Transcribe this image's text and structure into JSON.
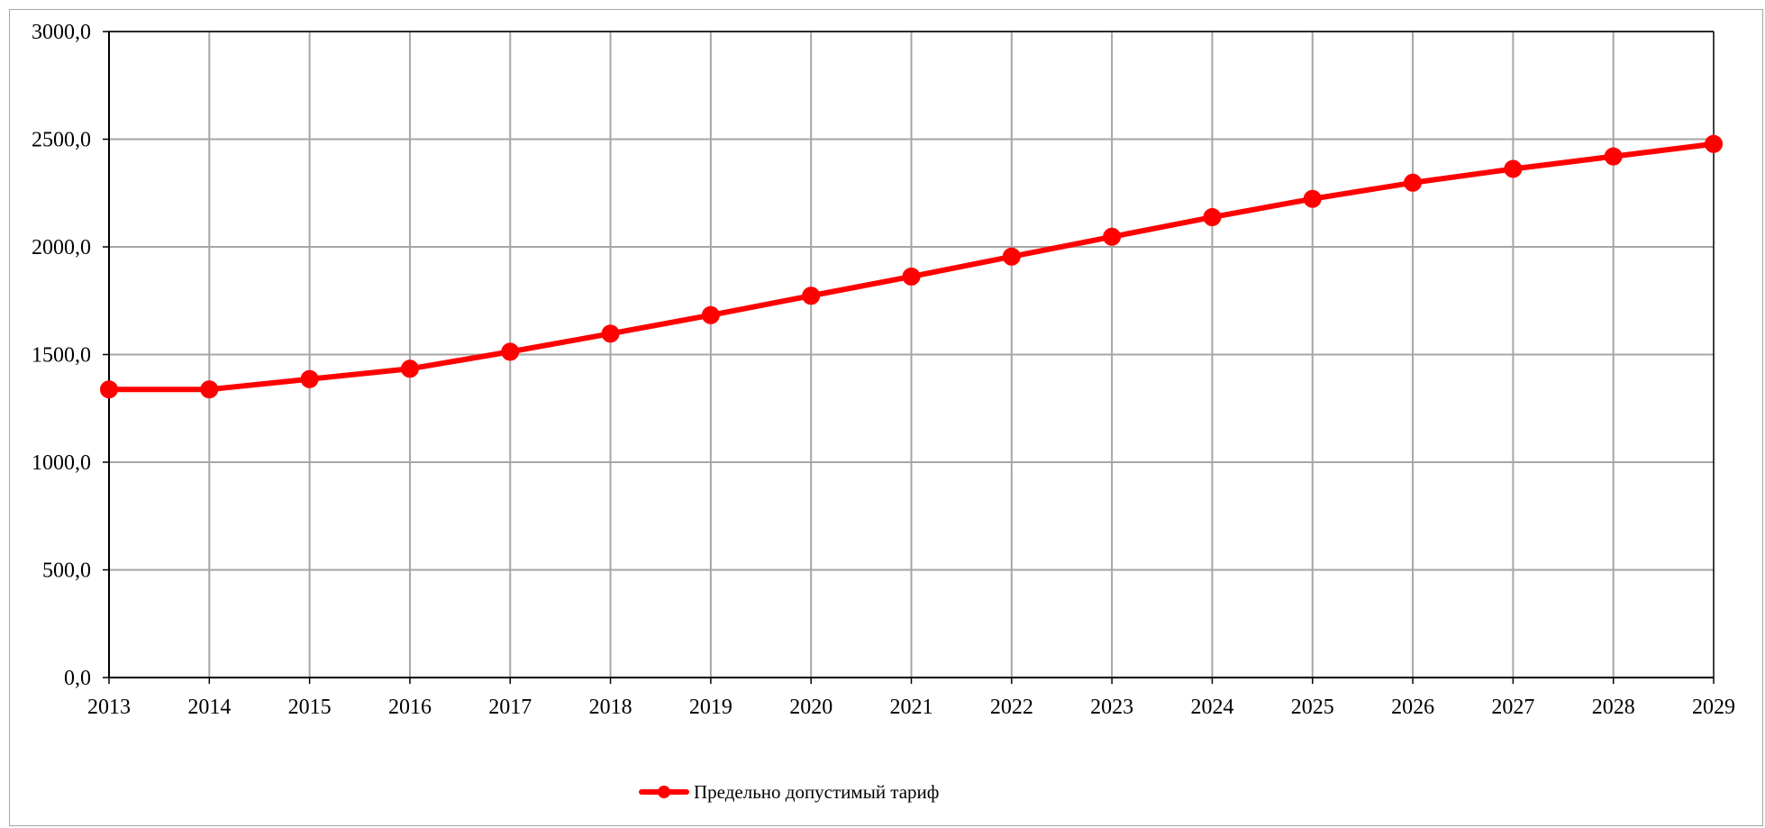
{
  "chart_data": {
    "type": "line",
    "title": "",
    "xlabel": "",
    "ylabel": "",
    "x": [
      "2013",
      "2014",
      "2015",
      "2016",
      "2017",
      "2018",
      "2019",
      "2020",
      "2021",
      "2022",
      "2023",
      "2024",
      "2025",
      "2026",
      "2027",
      "2028",
      "2029"
    ],
    "series": [
      {
        "name": "Предельно допустимый тариф",
        "color": "#ff0000",
        "values": [
          1338,
          1338,
          1386,
          1434,
          1513,
          1597,
          1683,
          1773,
          1862,
          1955,
          2047,
          2138,
          2223,
          2298,
          2362,
          2420,
          2478
        ]
      }
    ],
    "ylim": [
      0,
      3000
    ],
    "yticks": [
      0,
      500,
      1000,
      1500,
      2000,
      2500,
      3000
    ],
    "ytick_labels": [
      "0,0",
      "500,0",
      "1000,0",
      "1500,0",
      "2000,0",
      "2500,0",
      "3000,0"
    ],
    "grid": true,
    "legend_position": "bottom",
    "gridline_color": "#a6a6a6"
  }
}
